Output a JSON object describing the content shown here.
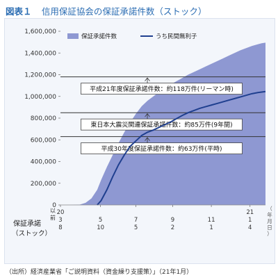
{
  "figure": {
    "label": "図表１",
    "title": "信用保証協会の保証承諾件数（ストック）",
    "source": "（出所）経済産業省「ご説明資料（資金繰り支援策）」（21年1月）"
  },
  "chart_data": {
    "type": "area",
    "ylim": [
      0,
      1600000
    ],
    "yticks": [
      0,
      200000,
      400000,
      600000,
      800000,
      1000000,
      1200000,
      1400000,
      1600000
    ],
    "ytick_labels": [
      "0",
      "200,000",
      "400,000",
      "600,000",
      "800,000",
      "1,000,000",
      "1,200,000",
      "1,400,000",
      "1,600,000"
    ],
    "xlim": [
      0,
      10.6
    ],
    "x_unit_note": "months since 2020-03-08",
    "ylabel_left": "保証承諾",
    "ylabel_left2": "（ストック）",
    "x_axis_unit": "（年月日）",
    "x_axis_prefix": "以前",
    "xticks": [
      {
        "x": 0,
        "year": "20",
        "month": "3",
        "day": "8"
      },
      {
        "x": 2.07,
        "year": "",
        "month": "5",
        "day": "10"
      },
      {
        "x": 3.9,
        "year": "",
        "month": "7",
        "day": "5"
      },
      {
        "x": 5.8,
        "year": "",
        "month": "9",
        "day": "2"
      },
      {
        "x": 7.8,
        "year": "",
        "month": "11",
        "day": "1"
      },
      {
        "x": 9.8,
        "year": "21",
        "month": "1",
        "day": "4"
      }
    ],
    "series": [
      {
        "name": "保証承諾件数",
        "kind": "area",
        "color": "#8e98d2",
        "x": [
          0,
          0.5,
          1.0,
          1.3,
          1.6,
          1.9,
          2.1,
          2.4,
          2.7,
          3.0,
          3.3,
          3.6,
          3.9,
          4.2,
          4.5,
          4.8,
          5.1,
          5.4,
          5.7,
          6.0,
          6.3,
          6.6,
          6.9,
          7.2,
          7.5,
          7.8,
          8.1,
          8.4,
          8.7,
          9.0,
          9.3,
          9.6,
          9.9,
          10.2,
          10.4,
          10.6
        ],
        "values": [
          0,
          1000,
          3000,
          20000,
          60000,
          140000,
          230000,
          350000,
          460000,
          570000,
          670000,
          760000,
          840000,
          910000,
          960000,
          1000000,
          1040000,
          1075000,
          1110000,
          1140000,
          1170000,
          1200000,
          1225000,
          1250000,
          1275000,
          1300000,
          1325000,
          1350000,
          1375000,
          1400000,
          1425000,
          1445000,
          1465000,
          1480000,
          1490000,
          1495000
        ]
      },
      {
        "name": "うち民間無利子",
        "kind": "line",
        "color": "#1f3f8f",
        "x": [
          1.9,
          2.1,
          2.4,
          2.7,
          3.0,
          3.3,
          3.6,
          3.9,
          4.2,
          4.5,
          4.8,
          5.1,
          5.4,
          5.7,
          6.0,
          6.3,
          6.6,
          6.9,
          7.2,
          7.5,
          7.8,
          8.1,
          8.4,
          8.7,
          9.0,
          9.3,
          9.6,
          9.9,
          10.2,
          10.4,
          10.6
        ],
        "values": [
          0,
          40000,
          140000,
          260000,
          370000,
          460000,
          540000,
          590000,
          640000,
          670000,
          690000,
          715000,
          740000,
          765000,
          795000,
          825000,
          850000,
          870000,
          890000,
          905000,
          920000,
          935000,
          950000,
          965000,
          980000,
          995000,
          1010000,
          1025000,
          1035000,
          1040000,
          1045000
        ]
      }
    ],
    "reference_lines": [
      {
        "y": 1180000,
        "label": "平成21年度保証承諾件数：約118万件(リーマン時)"
      },
      {
        "y": 850000,
        "label": "東日本大震災関連保証承諾件数：約85万件(9年間)"
      },
      {
        "y": 630000,
        "label": "平成30年度保証承諾件数：約63万件(平時)"
      }
    ],
    "legend_position": "top",
    "grid": false
  }
}
